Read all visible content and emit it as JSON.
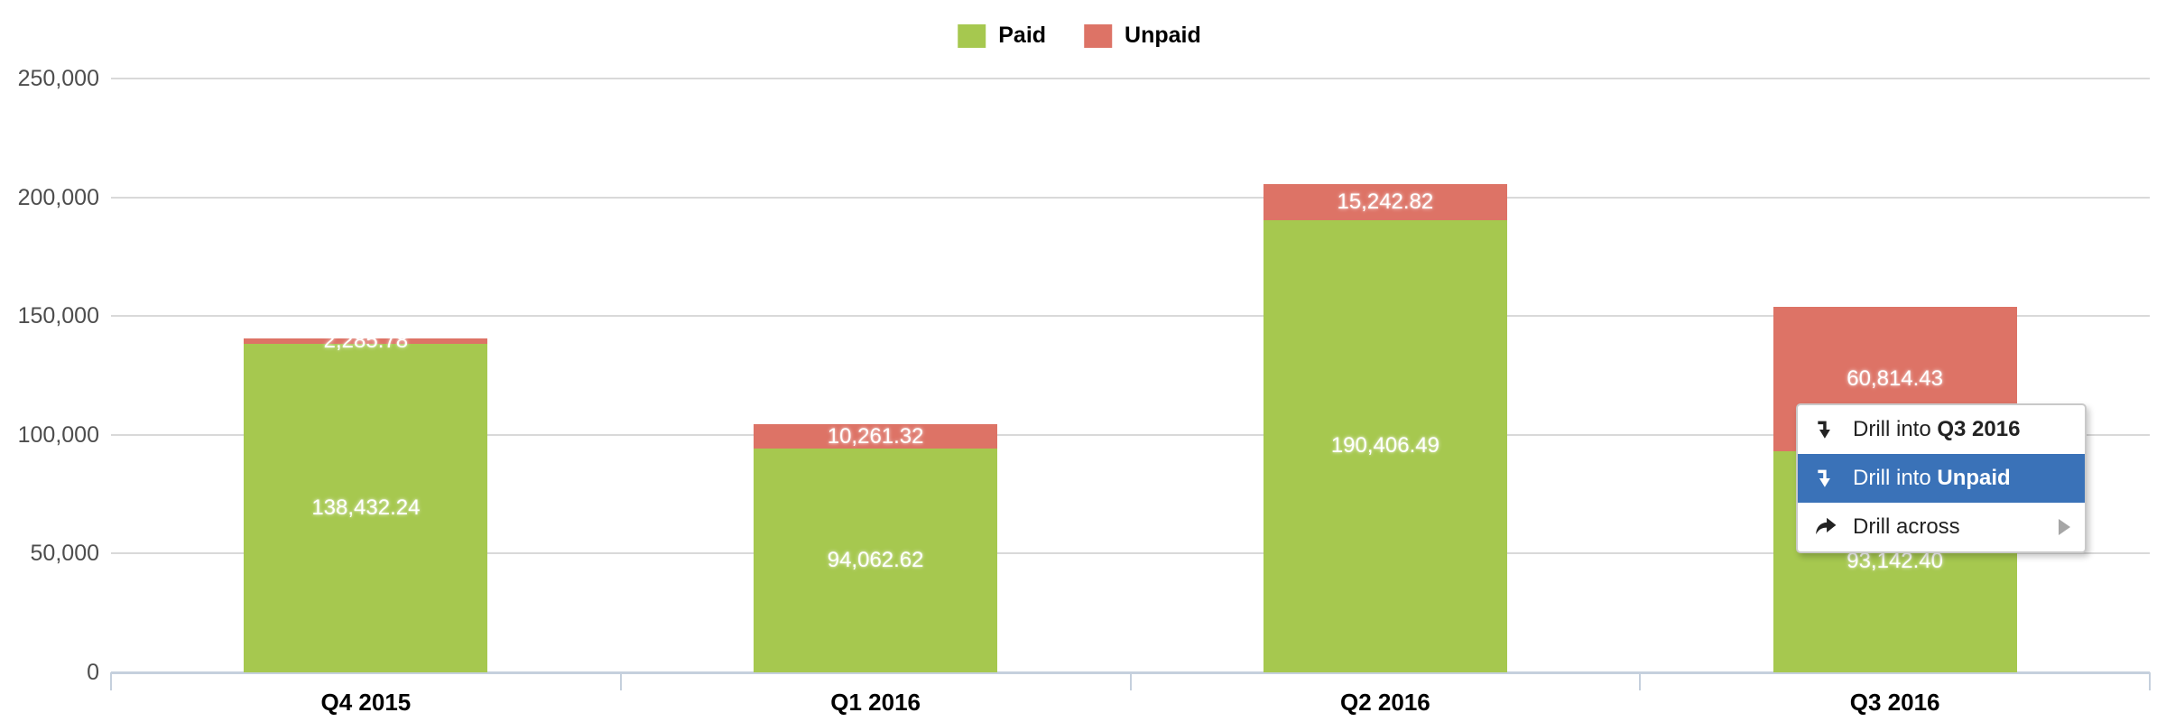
{
  "legend": {
    "items": [
      {
        "label": "Paid",
        "color": "#a6c84f"
      },
      {
        "label": "Unpaid",
        "color": "#dd7366"
      }
    ]
  },
  "chart_data": {
    "type": "bar",
    "stacked": true,
    "title": "",
    "xlabel": "",
    "ylabel": "",
    "grid": true,
    "legend_position": "top",
    "ylim": [
      0,
      250000
    ],
    "categories": [
      "Q4 2015",
      "Q1 2016",
      "Q2 2016",
      "Q3 2016"
    ],
    "series": [
      {
        "name": "Paid",
        "color": "#a6c84f",
        "values": [
          138432.24,
          94062.62,
          190406.49,
          93142.4
        ],
        "labels": [
          "138,432.24",
          "94,062.62",
          "190,406.49",
          "93,142.40"
        ]
      },
      {
        "name": "Unpaid",
        "color": "#dd7366",
        "values": [
          2285.78,
          10261.32,
          15242.82,
          60814.43
        ],
        "labels": [
          "2,285.78",
          "10,261.32",
          "15,242.82",
          "60,814.43"
        ]
      }
    ],
    "yticks": [
      {
        "value": 250000,
        "label": "250,000"
      },
      {
        "value": 200000,
        "label": "200,000"
      },
      {
        "value": 150000,
        "label": "150,000"
      },
      {
        "value": 100000,
        "label": "100,000"
      },
      {
        "value": 50000,
        "label": "50,000"
      },
      {
        "value": 0,
        "label": "0"
      }
    ]
  },
  "context_menu": {
    "highlight_color": "#3a72b8",
    "items": [
      {
        "icon": "drill-down-icon",
        "text": "Drill into ",
        "bold": "Q3 2016",
        "selected": false,
        "has_submenu": false
      },
      {
        "icon": "drill-down-icon",
        "text": "Drill into ",
        "bold": "Unpaid",
        "selected": true,
        "has_submenu": false
      },
      {
        "icon": "drill-across-icon",
        "text": "Drill across",
        "bold": "",
        "selected": false,
        "has_submenu": true
      }
    ]
  },
  "colors": {
    "axis_line": "#c5d0dd",
    "gridline": "#d9d9d9",
    "y_label": "#4d4d4d",
    "bar_label": "#ffffff"
  }
}
